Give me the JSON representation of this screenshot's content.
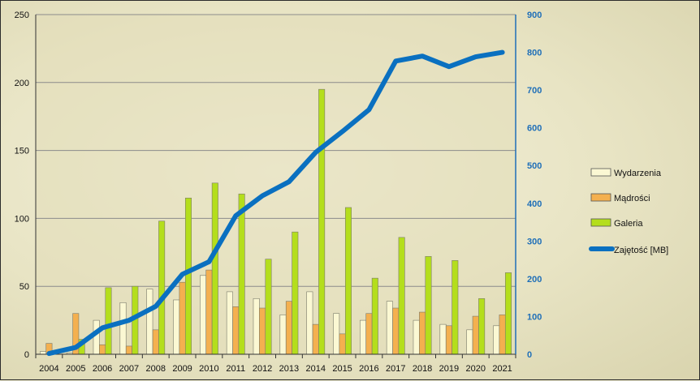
{
  "chart_data": {
    "type": "bar",
    "categories": [
      "2004",
      "2005",
      "2006",
      "2007",
      "2008",
      "2009",
      "2010",
      "2011",
      "2012",
      "2013",
      "2014",
      "2015",
      "2016",
      "2017",
      "2018",
      "2019",
      "2020",
      "2021"
    ],
    "series": [
      {
        "name": "Wydarzenia",
        "color": "#fbf8d3",
        "values": [
          2,
          1,
          25,
          38,
          48,
          40,
          58,
          46,
          41,
          29,
          46,
          30,
          25,
          39,
          25,
          22,
          18,
          21
        ]
      },
      {
        "name": "Mądrości",
        "color": "#f4b04f",
        "values": [
          8,
          30,
          7,
          6,
          18,
          53,
          62,
          35,
          34,
          39,
          22,
          15,
          30,
          34,
          31,
          21,
          28,
          29
        ]
      },
      {
        "name": "Galeria",
        "color": "#b4de1c",
        "values": [
          0,
          11,
          49,
          50,
          98,
          115,
          126,
          118,
          70,
          90,
          195,
          108,
          56,
          86,
          72,
          69,
          41,
          60
        ]
      }
    ],
    "line_series": {
      "name": "Zajętość [MB]",
      "color": "#0a70c0",
      "axis": "right",
      "values": [
        2,
        18,
        70,
        90,
        127,
        212,
        245,
        367,
        420,
        457,
        535,
        590,
        648,
        777,
        790,
        762,
        788,
        800
      ]
    },
    "left_axis": {
      "ylim": [
        0,
        250
      ],
      "ticks": [
        "0",
        "50",
        "100",
        "150",
        "200",
        "250"
      ]
    },
    "right_axis": {
      "ylim": [
        0,
        900
      ],
      "ticks": [
        "0",
        "100",
        "200",
        "300",
        "400",
        "500",
        "600",
        "700",
        "800",
        "900"
      ]
    },
    "grid": "horizontal",
    "legend_position": "right"
  }
}
